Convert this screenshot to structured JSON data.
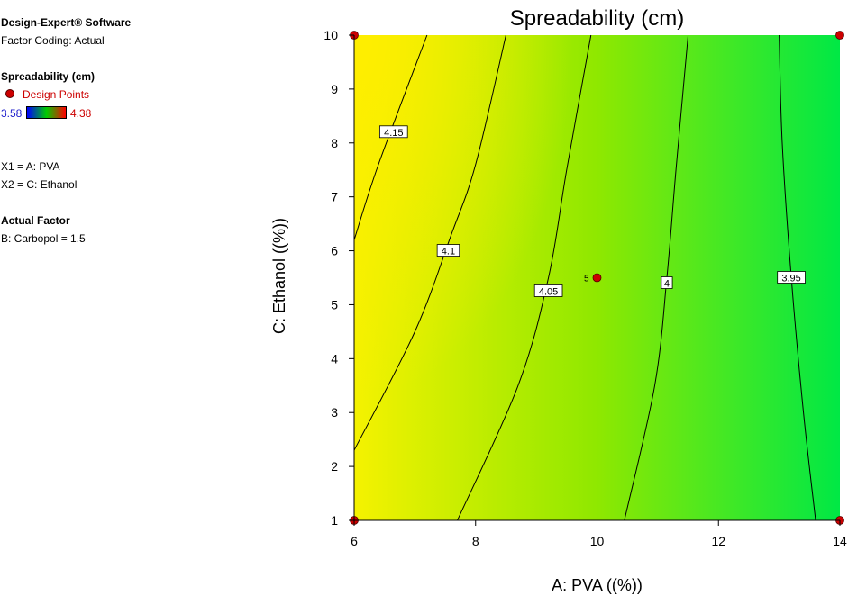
{
  "legend": {
    "software": "Design-Expert® Software",
    "factor_coding": "Factor Coding: Actual",
    "response": "Spreadability (cm)",
    "design_points_label": "Design Points",
    "scale_min": "3.58",
    "scale_max": "4.38",
    "x1": "X1 = A: PVA",
    "x2": "X2 = C: Ethanol",
    "actual_factor_heading": "Actual Factor",
    "actual_factor_value": "B: Carbopol  = 1.5"
  },
  "colors": {
    "design_point": "#cc0000",
    "scale_low": "#0000ff",
    "scale_mid": "#00cc00",
    "scale_high": "#ff0000",
    "surface_high": "#ffef00",
    "surface_mid": "#8fe800",
    "surface_low": "#00e845"
  },
  "chart_data": {
    "type": "contour",
    "title": "Spreadability (cm)",
    "xlabel": "A: PVA ((%))",
    "ylabel": "C: Ethanol  ((%))",
    "xlim": [
      6,
      14
    ],
    "ylim": [
      1,
      10
    ],
    "x_ticks": [
      "6",
      "8",
      "10",
      "12",
      "14"
    ],
    "y_ticks": [
      "1",
      "2",
      "3",
      "4",
      "5",
      "6",
      "7",
      "8",
      "9",
      "10"
    ],
    "contours": [
      {
        "level": "4.15",
        "points": [
          [
            6,
            6.2
          ],
          [
            6.4,
            7.6
          ],
          [
            7.2,
            10
          ]
        ],
        "label_at": [
          6.65,
          8.2
        ]
      },
      {
        "level": "4.1",
        "points": [
          [
            6,
            2.3
          ],
          [
            7.0,
            4.5
          ],
          [
            7.6,
            6.3
          ],
          [
            8.0,
            7.6
          ],
          [
            8.5,
            10
          ]
        ],
        "label_at": [
          7.55,
          6.0
        ]
      },
      {
        "level": "4.05",
        "points": [
          [
            7.7,
            1
          ],
          [
            8.7,
            3.5
          ],
          [
            9.2,
            5.5
          ],
          [
            9.5,
            7.5
          ],
          [
            9.9,
            10
          ]
        ],
        "label_at": [
          9.2,
          5.25
        ]
      },
      {
        "level": "4",
        "points": [
          [
            10.45,
            1
          ],
          [
            10.95,
            3.5
          ],
          [
            11.15,
            5.5
          ],
          [
            11.3,
            7.5
          ],
          [
            11.5,
            10
          ]
        ],
        "label_at": [
          11.15,
          5.4
        ]
      },
      {
        "level": "3.95",
        "points": [
          [
            13.6,
            1
          ],
          [
            13.4,
            3
          ],
          [
            13.2,
            5.5
          ],
          [
            13.05,
            8
          ],
          [
            13.0,
            10
          ]
        ],
        "label_at": [
          13.2,
          5.5
        ]
      }
    ],
    "design_points": [
      {
        "x": 6,
        "y": 10
      },
      {
        "x": 14,
        "y": 10
      },
      {
        "x": 6,
        "y": 1
      },
      {
        "x": 14,
        "y": 1
      },
      {
        "x": 10,
        "y": 5.5,
        "label": "5"
      }
    ]
  }
}
